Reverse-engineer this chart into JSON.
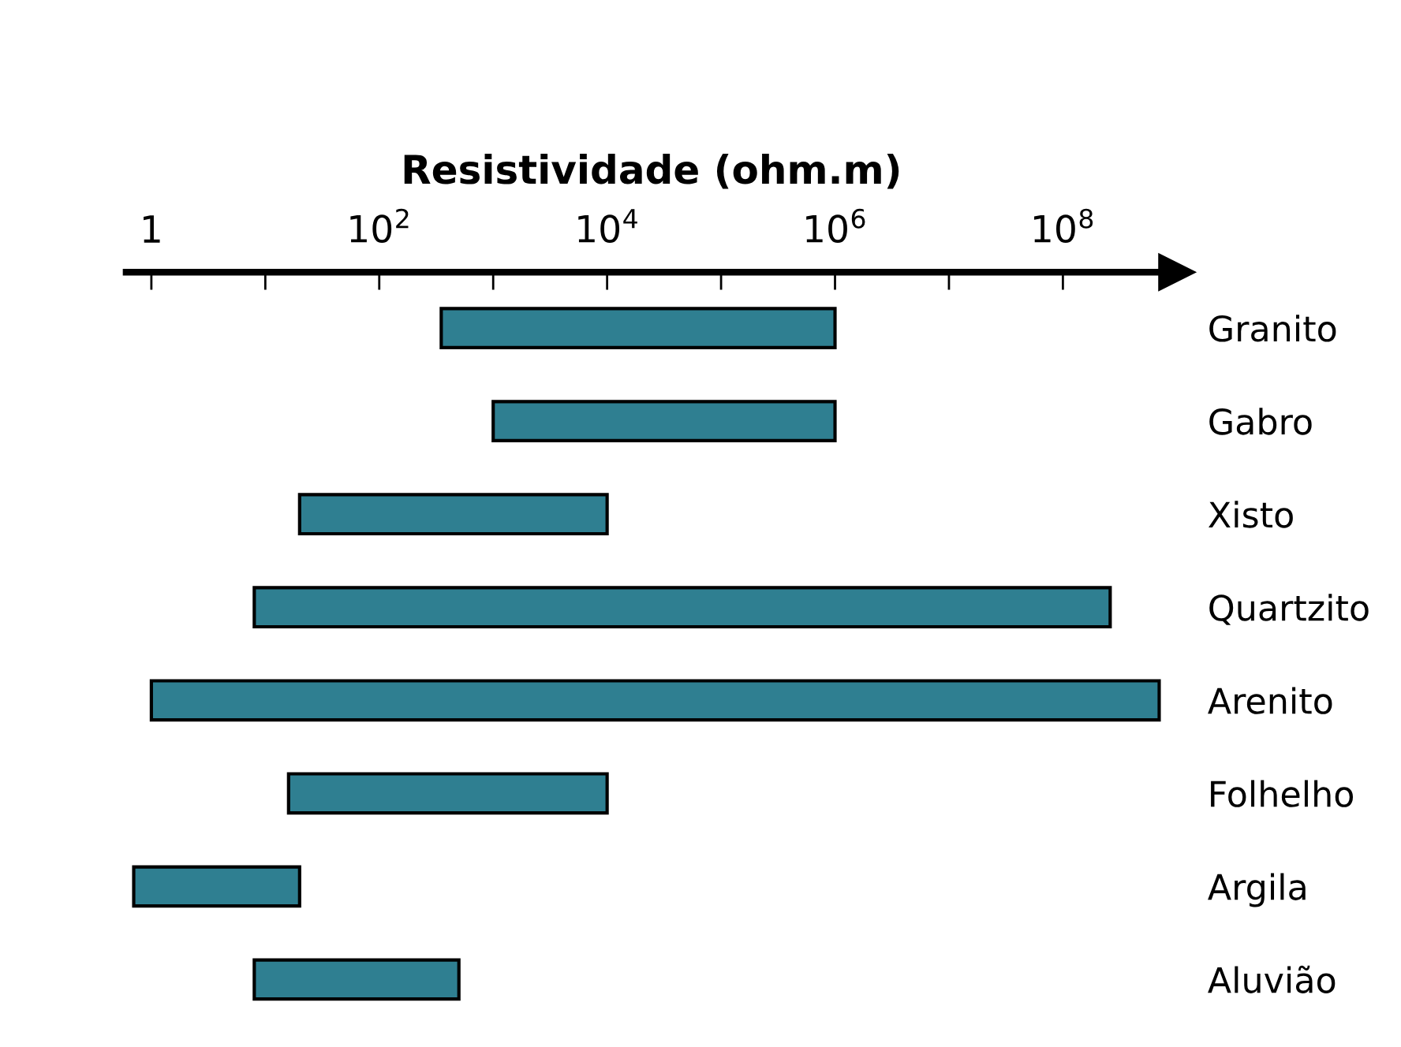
{
  "chart_data": {
    "type": "bar",
    "orientation": "horizontal",
    "xlabel": "Resistividade (ohm.m)",
    "categories": [
      "Granito",
      "Gabro",
      "Xisto",
      "Quartzito",
      "Arenito",
      "Folhelho",
      "Argila",
      "Aluvião"
    ],
    "base": [
      350,
      1000,
      20,
      8,
      1,
      16,
      0.7,
      8
    ],
    "values": [
      999650,
      999000,
      9980,
      259999992,
      699999999,
      9984,
      19.3,
      492
    ],
    "color": "#2f7f91",
    "log": "x",
    "xlim": [
      0.6,
      1000000000
    ],
    "xticks": [
      1,
      {
        "value": 10,
        "label": null
      },
      {
        "value": 100,
        "label": "10$^{2}$"
      },
      {
        "value": 1000,
        "label": null
      },
      {
        "value": 10000,
        "label": "10$^{4}$"
      },
      {
        "value": 100000,
        "label": null
      },
      {
        "value": 1000000,
        "label": "10$^{6}$"
      },
      {
        "value": 10000000,
        "label": null
      },
      {
        "value": 100000000,
        "label": "10$^{8}$"
      }
    ],
    "grid": false,
    "legend": false
  }
}
